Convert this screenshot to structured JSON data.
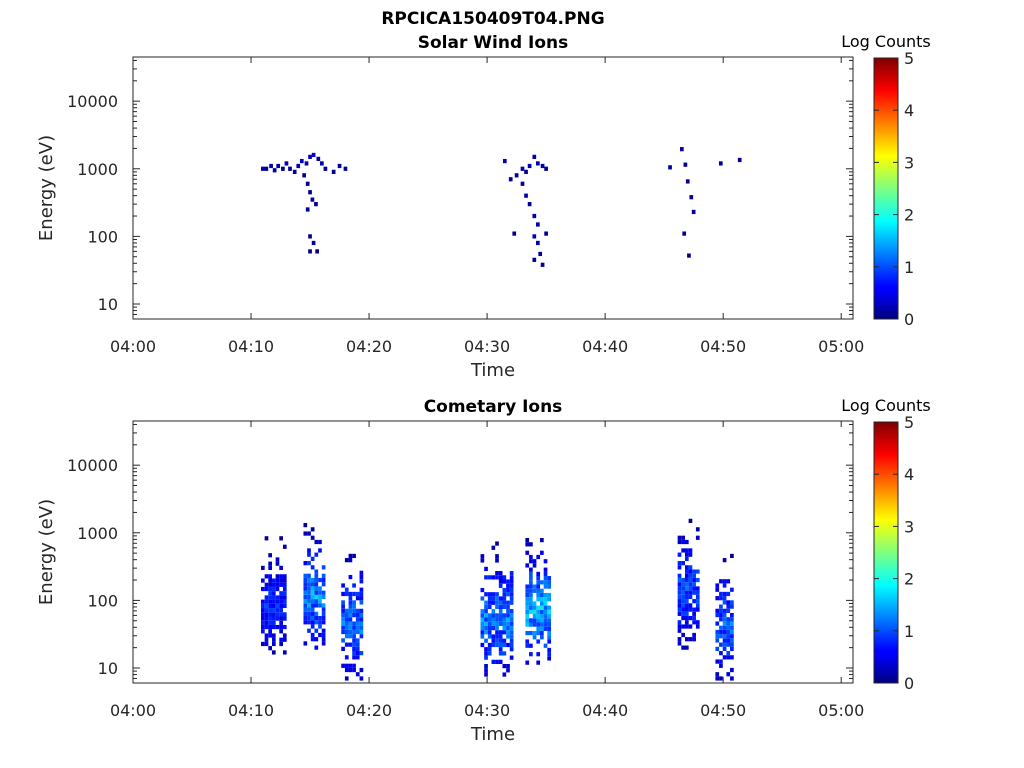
{
  "figure_title": "RPCICA150409T04.PNG",
  "chart_data": [
    {
      "type": "heatmap",
      "title": "Solar Wind Ions",
      "xlabel": "Time",
      "ylabel": "Energy (eV)",
      "x_ticks": [
        "04:00",
        "04:10",
        "04:20",
        "04:30",
        "04:40",
        "04:50",
        "05:00"
      ],
      "xlim_minutes": [
        0,
        61
      ],
      "y_scale": "log",
      "y_ticks": [
        10,
        100,
        1000,
        10000
      ],
      "y_tick_labels": [
        "10",
        "100",
        "1000",
        "10000"
      ],
      "ylim": [
        6,
        45000
      ],
      "colorbar": {
        "label": "Log Counts",
        "range": [
          0,
          5
        ],
        "ticks": [
          "0",
          "1",
          "2",
          "3",
          "4",
          "5"
        ],
        "colormap": "jet"
      },
      "grid": false,
      "cells": [
        [
          11.0,
          1000,
          0.2
        ],
        [
          11.3,
          1000,
          0.1
        ],
        [
          11.7,
          1100,
          0.2
        ],
        [
          12.0,
          950,
          0.1
        ],
        [
          12.3,
          1100,
          0.2
        ],
        [
          12.7,
          1000,
          0.1
        ],
        [
          13.0,
          1200,
          0.2
        ],
        [
          13.3,
          1000,
          0.1
        ],
        [
          13.7,
          900,
          0.1
        ],
        [
          14.0,
          1100,
          0.2
        ],
        [
          14.3,
          1300,
          0.3
        ],
        [
          14.7,
          1200,
          0.2
        ],
        [
          15.0,
          1500,
          0.3
        ],
        [
          15.3,
          1600,
          0.3
        ],
        [
          15.7,
          1400,
          0.2
        ],
        [
          16.0,
          1200,
          0.2
        ],
        [
          14.5,
          800,
          0.1
        ],
        [
          14.8,
          600,
          0.1
        ],
        [
          15.0,
          450,
          0.1
        ],
        [
          15.2,
          350,
          0.2
        ],
        [
          15.5,
          300,
          0.1
        ],
        [
          14.8,
          250,
          0.1
        ],
        [
          15.0,
          100,
          0.1
        ],
        [
          15.3,
          80,
          0.2
        ],
        [
          15.0,
          60,
          0.1
        ],
        [
          15.6,
          60,
          0.1
        ],
        [
          16.3,
          1000,
          0.1
        ],
        [
          17.0,
          900,
          0.1
        ],
        [
          17.5,
          1100,
          0.1
        ],
        [
          18.0,
          1000,
          0.1
        ],
        [
          31.5,
          1300,
          0.2
        ],
        [
          32.0,
          700,
          0.1
        ],
        [
          32.5,
          800,
          0.1
        ],
        [
          33.0,
          1000,
          0.2
        ],
        [
          33.3,
          900,
          0.1
        ],
        [
          33.6,
          1100,
          0.2
        ],
        [
          34.0,
          1500,
          0.2
        ],
        [
          34.3,
          1200,
          0.2
        ],
        [
          34.7,
          1100,
          0.2
        ],
        [
          35.0,
          1000,
          0.1
        ],
        [
          33.0,
          600,
          0.1
        ],
        [
          33.3,
          400,
          0.2
        ],
        [
          33.6,
          300,
          0.1
        ],
        [
          34.0,
          200,
          0.2
        ],
        [
          34.3,
          150,
          0.2
        ],
        [
          34.0,
          100,
          0.3
        ],
        [
          34.3,
          80,
          0.2
        ],
        [
          34.5,
          55,
          0.1
        ],
        [
          34.0,
          45,
          0.1
        ],
        [
          34.7,
          38,
          0.1
        ],
        [
          35.0,
          110,
          0.1
        ],
        [
          32.3,
          110,
          0.1
        ],
        [
          45.5,
          1050,
          0.1
        ],
        [
          46.5,
          1950,
          0.1
        ],
        [
          46.8,
          1150,
          0.1
        ],
        [
          47.0,
          650,
          0.1
        ],
        [
          47.3,
          380,
          0.1
        ],
        [
          47.5,
          230,
          0.1
        ],
        [
          46.7,
          110,
          0.1
        ],
        [
          47.1,
          52,
          0.1
        ],
        [
          49.8,
          1200,
          0.1
        ],
        [
          51.4,
          1350,
          0.1
        ]
      ]
    },
    {
      "type": "heatmap",
      "title": "Cometary Ions",
      "xlabel": "Time",
      "ylabel": "Energy (eV)",
      "x_ticks": [
        "04:00",
        "04:10",
        "04:20",
        "04:30",
        "04:40",
        "04:50",
        "05:00"
      ],
      "xlim_minutes": [
        0,
        61
      ],
      "y_scale": "log",
      "y_ticks": [
        10,
        100,
        1000,
        10000
      ],
      "y_tick_labels": [
        "10",
        "100",
        "1000",
        "10000"
      ],
      "ylim": [
        6,
        45000
      ],
      "colorbar": {
        "label": "Log Counts",
        "range": [
          0,
          5
        ],
        "ticks": [
          "0",
          "1",
          "2",
          "3",
          "4",
          "5"
        ],
        "colormap": "jet"
      },
      "grid": false,
      "bursts": [
        {
          "t0": 11.0,
          "t1": 13.0,
          "e_lo": 17,
          "e_hi": 900,
          "peak": 0.9
        },
        {
          "t0": 14.6,
          "t1": 16.4,
          "e_lo": 20,
          "e_hi": 1300,
          "peak": 1.5
        },
        {
          "t0": 17.8,
          "t1": 19.6,
          "e_lo": 7,
          "e_hi": 550,
          "peak": 1.3
        },
        {
          "t0": 29.6,
          "t1": 32.2,
          "e_lo": 8,
          "e_hi": 700,
          "peak": 1.4
        },
        {
          "t0": 33.4,
          "t1": 35.4,
          "e_lo": 12,
          "e_hi": 850,
          "peak": 1.7
        },
        {
          "t0": 46.3,
          "t1": 48.0,
          "e_lo": 20,
          "e_hi": 1700,
          "peak": 1.1
        },
        {
          "t0": 49.5,
          "t1": 51.0,
          "e_lo": 7,
          "e_hi": 500,
          "peak": 1.2
        }
      ]
    }
  ]
}
